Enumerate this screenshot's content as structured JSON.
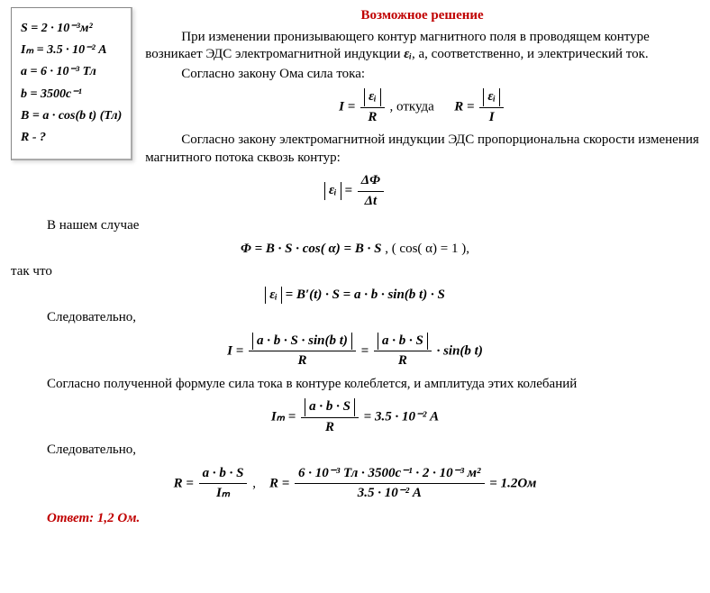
{
  "title": "Возможное решение",
  "given": {
    "s": "S = 2 · 10⁻³м²",
    "im": "Iₘ = 3.5 · 10⁻² А",
    "a": "a = 6 · 10⁻³ Тл",
    "b": "b = 3500с⁻¹",
    "B": "B = a · cos(b t) (Тл)",
    "R": "R - ?"
  },
  "text": {
    "p1_before": "При изменении пронизывающего контур магнитного поля в проводящем контуре возникает ЭДС электромагнитной индукции ",
    "eps": "εᵢ",
    "p1_after": ", а, соответственно, и электрический ток.",
    "p2": "Согласно закону Ома сила тока:",
    "otkuda": " , откуда ",
    "p3": "Согласно закону электромагнитной индукции ЭДС пропорциональна скорости изменения магнитного потока сквозь контур:",
    "p4": "В нашем случае",
    "cos1": ", (  cos( α) = 1 ),",
    "p5": "так что",
    "p6": "Следовательно,",
    "p7": "Согласно полученной формуле сила тока в контуре колеблется, и амплитуда этих колебаний",
    "p8": "Следовательно,"
  },
  "formulas": {
    "f1_I": "I = ",
    "f1_num": "εᵢ",
    "f1_den": "R",
    "f1_R": "R = ",
    "f1_num2": "εᵢ",
    "f1_den2": "I",
    "f2_lhs": "εᵢ",
    "f2_eq": " = ",
    "f2_num": "ΔΦ",
    "f2_den": "Δt",
    "f3": "Φ = B · S · cos( α) = B · S ",
    "f4_lhs": "εᵢ",
    "f4_rhs": " = B′(t) · S = a · b · sin(b t) · S",
    "f5_lhs": "I = ",
    "f5_num1": "a · b · S · sin(b t)",
    "f5_den1": "R",
    "f5_eq": " = ",
    "f5_num2": "a · b · S",
    "f5_den2": "R",
    "f5_tail": " · sin(b t)",
    "f6_lhs": "Iₘ = ",
    "f6_num": "a · b · S",
    "f6_den": "R",
    "f6_rhs": " = 3.5 · 10⁻² А",
    "f7a_lhs": "R = ",
    "f7a_num": "a · b · S",
    "f7a_den": "Iₘ",
    "f7a_comma": " , ",
    "f7b_lhs": "R = ",
    "f7b_num": "6 · 10⁻³ Тл · 3500с⁻¹ · 2 · 10⁻³ м²",
    "f7b_den": "3.5 · 10⁻² А",
    "f7b_rhs": " = 1.2Ом"
  },
  "answer": "Ответ: 1,2 Ом."
}
